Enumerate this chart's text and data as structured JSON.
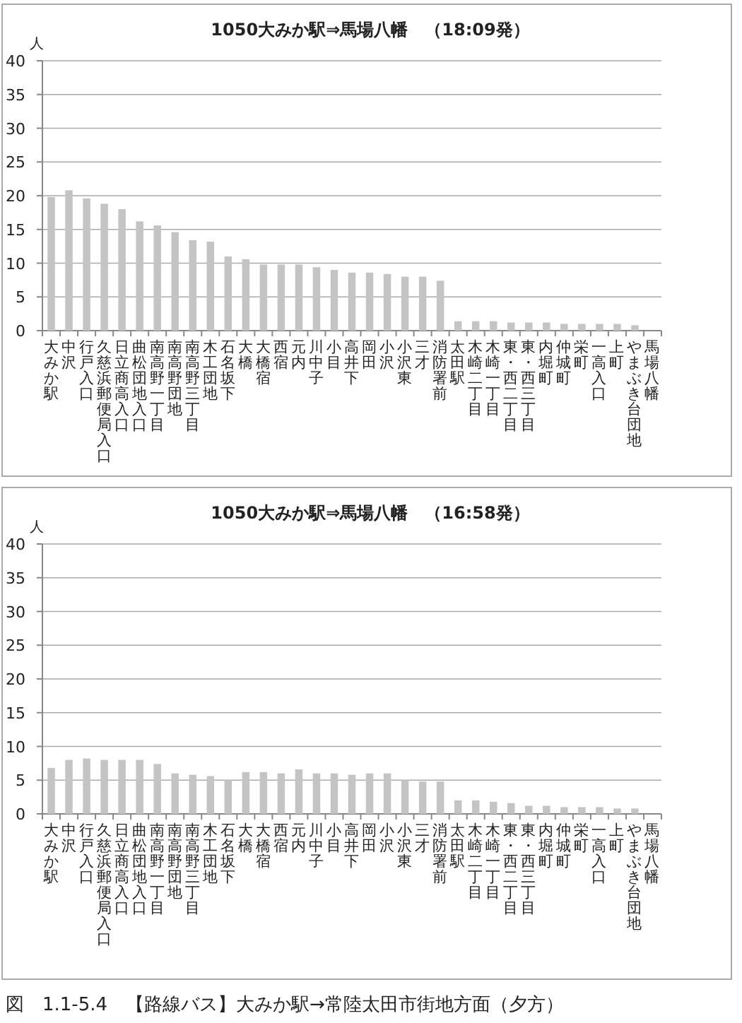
{
  "chart_data": [
    {
      "type": "bar",
      "title": "1050大みか駅⇒馬場八幡　（18:09発）",
      "ylabel": "人",
      "categories": [
        "大みか駅",
        "中沢",
        "行戸入口",
        "久慈浜郵便局入口",
        "日立商高入口",
        "曲松団地入口",
        "南高野一丁目",
        "南高野団地",
        "南高野三丁目",
        "木工団地",
        "石名坂下",
        "大橋",
        "大橋宿",
        "西宿",
        "元内",
        "川中子",
        "小目",
        "高井下",
        "岡田",
        "小沢",
        "小沢東",
        "三才",
        "消防署前",
        "太田駅",
        "木崎二丁目",
        "木崎一丁目",
        "東・西二丁目",
        "東・西三丁目",
        "内堀町",
        "仲城町",
        "栄町",
        "一高入口",
        "上町",
        "やまぶき台団地",
        "馬場八幡"
      ],
      "values": [
        19.8,
        20.8,
        19.6,
        18.8,
        18,
        16.2,
        15.6,
        14.6,
        13.4,
        13.2,
        11,
        10.6,
        9.8,
        9.8,
        9.8,
        9.4,
        9,
        8.6,
        8.6,
        8.4,
        8,
        8,
        7.4,
        1.4,
        1.4,
        1.4,
        1.2,
        1.2,
        1.2,
        1,
        1,
        1,
        1,
        0.8,
        null
      ],
      "color": "#c4c4c4",
      "ylim": [
        0,
        40
      ],
      "yticks": [
        0,
        5,
        10,
        15,
        20,
        25,
        30,
        35,
        40
      ],
      "grid": "y"
    },
    {
      "type": "bar",
      "title": "1050大みか駅⇒馬場八幡　（16:58発）",
      "ylabel": "人",
      "categories": [
        "大みか駅",
        "中沢",
        "行戸入口",
        "久慈浜郵便局入口",
        "日立商高入口",
        "曲松団地入口",
        "南高野一丁目",
        "南高野団地",
        "南高野三丁目",
        "木工団地",
        "石名坂下",
        "大橋",
        "大橋宿",
        "西宿",
        "元内",
        "川中子",
        "小目",
        "高井下",
        "岡田",
        "小沢",
        "小沢東",
        "三才",
        "消防署前",
        "太田駅",
        "木崎二丁目",
        "木崎一丁目",
        "東・西二丁目",
        "東・西三丁目",
        "内堀町",
        "仲城町",
        "栄町",
        "一高入口",
        "上町",
        "やまぶき台団地",
        "馬場八幡"
      ],
      "values": [
        6.8,
        8,
        8.2,
        8,
        8,
        8,
        7.4,
        6,
        5.8,
        5.6,
        5,
        6.2,
        6.2,
        6,
        6.6,
        6,
        6,
        5.8,
        6,
        6,
        5,
        4.8,
        4.8,
        2,
        2,
        1.8,
        1.6,
        1.2,
        1.2,
        1,
        1,
        1,
        0.8,
        0.8,
        null
      ],
      "color": "#c4c4c4",
      "ylim": [
        0,
        40
      ],
      "yticks": [
        0,
        5,
        10,
        15,
        20,
        25,
        30,
        35,
        40
      ],
      "grid": "y",
      "annotations": [
        "図　1.1-5.4　【路線バス】大みか駅→常陸太田市街地方面（夕方）"
      ]
    }
  ]
}
